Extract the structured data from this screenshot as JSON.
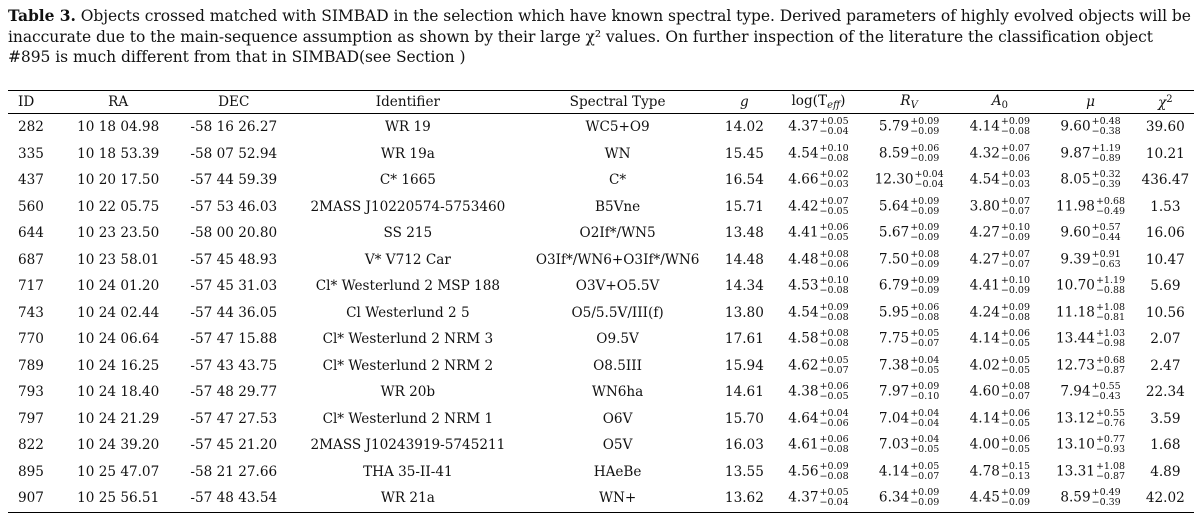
{
  "caption": {
    "label": "Table 3.",
    "text": " Objects crossed matched with SIMBAD in the selection which have known spectral type. Derived parameters of highly evolved objects will be inaccurate due to the main-sequence assumption as shown by their large χ² values. On further inspection of the literature the classification object #895 is much different from that in SIMBAD(see Section )"
  },
  "columns": [
    "ID",
    "RA",
    "DEC",
    "Identifier",
    "Spectral Type",
    "g",
    "log(T",
    "eff",
    ")",
    "R",
    "V",
    "A",
    "0",
    "μ",
    "χ",
    "2"
  ],
  "rows": [
    {
      "id": "282",
      "ra": "10 18 04.98",
      "dec": "-58 16 26.27",
      "ident": "WR 19",
      "spt": "WC5+O9",
      "g": "14.02",
      "teff": "4.37",
      "teff_p": "+0.05",
      "teff_m": "−0.04",
      "rv": "5.79",
      "rv_p": "+0.09",
      "rv_m": "−0.09",
      "a0": "4.14",
      "a0_p": "+0.09",
      "a0_m": "−0.08",
      "mu": "9.60",
      "mu_p": "+0.48",
      "mu_m": "−0.38",
      "chi": "39.60"
    },
    {
      "id": "335",
      "ra": "10 18 53.39",
      "dec": "-58 07 52.94",
      "ident": "WR 19a",
      "spt": "WN",
      "g": "15.45",
      "teff": "4.54",
      "teff_p": "+0.10",
      "teff_m": "−0.08",
      "rv": "8.59",
      "rv_p": "+0.06",
      "rv_m": "−0.09",
      "a0": "4.32",
      "a0_p": "+0.07",
      "a0_m": "−0.06",
      "mu": "9.87",
      "mu_p": "+1.19",
      "mu_m": "−0.89",
      "chi": "10.21"
    },
    {
      "id": "437",
      "ra": "10 20 17.50",
      "dec": "-57 44 59.39",
      "ident": "C* 1665",
      "spt": "C*",
      "g": "16.54",
      "teff": "4.66",
      "teff_p": "+0.02",
      "teff_m": "−0.03",
      "rv": "12.30",
      "rv_p": "+0.04",
      "rv_m": "−0.04",
      "a0": "4.54",
      "a0_p": "+0.03",
      "a0_m": "−0.03",
      "mu": "8.05",
      "mu_p": "+0.32",
      "mu_m": "−0.39",
      "chi": "436.47"
    },
    {
      "id": "560",
      "ra": "10 22 05.75",
      "dec": "-57 53 46.03",
      "ident": "2MASS J10220574-5753460",
      "spt": "B5Vne",
      "g": "15.71",
      "teff": "4.42",
      "teff_p": "+0.07",
      "teff_m": "−0.05",
      "rv": "5.64",
      "rv_p": "+0.09",
      "rv_m": "−0.09",
      "a0": "3.80",
      "a0_p": "+0.07",
      "a0_m": "−0.07",
      "mu": "11.98",
      "mu_p": "+0.68",
      "mu_m": "−0.49",
      "chi": "1.53"
    },
    {
      "id": "644",
      "ra": "10 23 23.50",
      "dec": "-58 00 20.80",
      "ident": "SS 215",
      "spt": "O2If*/WN5",
      "g": "13.48",
      "teff": "4.41",
      "teff_p": "+0.06",
      "teff_m": "−0.05",
      "rv": "5.67",
      "rv_p": "+0.09",
      "rv_m": "−0.09",
      "a0": "4.27",
      "a0_p": "+0.10",
      "a0_m": "−0.09",
      "mu": "9.60",
      "mu_p": "+0.57",
      "mu_m": "−0.44",
      "chi": "16.06"
    },
    {
      "id": "687",
      "ra": "10 23 58.01",
      "dec": "-57 45 48.93",
      "ident": "V* V712 Car",
      "spt": "O3If*/WN6+O3If*/WN6",
      "g": "14.48",
      "teff": "4.48",
      "teff_p": "+0.08",
      "teff_m": "−0.06",
      "rv": "7.50",
      "rv_p": "+0.08",
      "rv_m": "−0.09",
      "a0": "4.27",
      "a0_p": "+0.07",
      "a0_m": "−0.07",
      "mu": "9.39",
      "mu_p": "+0.91",
      "mu_m": "−0.63",
      "chi": "10.47"
    },
    {
      "id": "717",
      "ra": "10 24 01.20",
      "dec": "-57 45 31.03",
      "ident": "Cl* Westerlund 2 MSP 188",
      "spt": "O3V+O5.5V",
      "g": "14.34",
      "teff": "4.53",
      "teff_p": "+0.10",
      "teff_m": "−0.08",
      "rv": "6.79",
      "rv_p": "+0.09",
      "rv_m": "−0.09",
      "a0": "4.41",
      "a0_p": "+0.10",
      "a0_m": "−0.09",
      "mu": "10.70",
      "mu_p": "+1.19",
      "mu_m": "−0.88",
      "chi": "5.69"
    },
    {
      "id": "743",
      "ra": "10 24 02.44",
      "dec": "-57 44 36.05",
      "ident": "Cl Westerlund 2 5",
      "spt": "O5/5.5V/III(f)",
      "g": "13.80",
      "teff": "4.54",
      "teff_p": "+0.09",
      "teff_m": "−0.08",
      "rv": "5.95",
      "rv_p": "+0.06",
      "rv_m": "−0.08",
      "a0": "4.24",
      "a0_p": "+0.09",
      "a0_m": "−0.08",
      "mu": "11.18",
      "mu_p": "+1.08",
      "mu_m": "−0.81",
      "chi": "10.56"
    },
    {
      "id": "770",
      "ra": "10 24 06.64",
      "dec": "-57 47 15.88",
      "ident": "Cl* Westerlund 2 NRM 3",
      "spt": "O9.5V",
      "g": "17.61",
      "teff": "4.58",
      "teff_p": "+0.08",
      "teff_m": "−0.08",
      "rv": "7.75",
      "rv_p": "+0.05",
      "rv_m": "−0.07",
      "a0": "4.14",
      "a0_p": "+0.06",
      "a0_m": "−0.05",
      "mu": "13.44",
      "mu_p": "+1.03",
      "mu_m": "−0.98",
      "chi": "2.07"
    },
    {
      "id": "789",
      "ra": "10 24 16.25",
      "dec": "-57 43 43.75",
      "ident": "Cl* Westerlund 2 NRM 2",
      "spt": "O8.5III",
      "g": "15.94",
      "teff": "4.62",
      "teff_p": "+0.05",
      "teff_m": "−0.07",
      "rv": "7.38",
      "rv_p": "+0.04",
      "rv_m": "−0.05",
      "a0": "4.02",
      "a0_p": "+0.05",
      "a0_m": "−0.05",
      "mu": "12.73",
      "mu_p": "+0.68",
      "mu_m": "−0.87",
      "chi": "2.47"
    },
    {
      "id": "793",
      "ra": "10 24 18.40",
      "dec": "-57 48 29.77",
      "ident": "WR 20b",
      "spt": "WN6ha",
      "g": "14.61",
      "teff": "4.38",
      "teff_p": "+0.06",
      "teff_m": "−0.05",
      "rv": "7.97",
      "rv_p": "+0.09",
      "rv_m": "−0.10",
      "a0": "4.60",
      "a0_p": "+0.08",
      "a0_m": "−0.07",
      "mu": "7.94",
      "mu_p": "+0.55",
      "mu_m": "−0.43",
      "chi": "22.34"
    },
    {
      "id": "797",
      "ra": "10 24 21.29",
      "dec": "-57 47 27.53",
      "ident": "Cl* Westerlund 2 NRM 1",
      "spt": "O6V",
      "g": "15.70",
      "teff": "4.64",
      "teff_p": "+0.04",
      "teff_m": "−0.06",
      "rv": "7.04",
      "rv_p": "+0.04",
      "rv_m": "−0.04",
      "a0": "4.14",
      "a0_p": "+0.06",
      "a0_m": "−0.05",
      "mu": "13.12",
      "mu_p": "+0.55",
      "mu_m": "−0.76",
      "chi": "3.59"
    },
    {
      "id": "822",
      "ra": "10 24 39.20",
      "dec": "-57 45 21.20",
      "ident": "2MASS J10243919-5745211",
      "spt": "O5V",
      "g": "16.03",
      "teff": "4.61",
      "teff_p": "+0.06",
      "teff_m": "−0.08",
      "rv": "7.03",
      "rv_p": "+0.04",
      "rv_m": "−0.05",
      "a0": "4.00",
      "a0_p": "+0.06",
      "a0_m": "−0.05",
      "mu": "13.10",
      "mu_p": "+0.77",
      "mu_m": "−0.93",
      "chi": "1.68"
    },
    {
      "id": "895",
      "ra": "10 25 47.07",
      "dec": "-58 21 27.66",
      "ident": "THA 35-II-41",
      "spt": "HAeBe",
      "g": "13.55",
      "teff": "4.56",
      "teff_p": "+0.09",
      "teff_m": "−0.08",
      "rv": "4.14",
      "rv_p": "+0.05",
      "rv_m": "−0.07",
      "a0": "4.78",
      "a0_p": "+0.15",
      "a0_m": "−0.13",
      "mu": "13.31",
      "mu_p": "+1.08",
      "mu_m": "−0.87",
      "chi": "4.89"
    },
    {
      "id": "907",
      "ra": "10 25 56.51",
      "dec": "-57 48 43.54",
      "ident": "WR 21a",
      "spt": "WN+",
      "g": "13.62",
      "teff": "4.37",
      "teff_p": "+0.05",
      "teff_m": "−0.04",
      "rv": "6.34",
      "rv_p": "+0.09",
      "rv_m": "−0.09",
      "a0": "4.45",
      "a0_p": "+0.09",
      "a0_m": "−0.09",
      "mu": "8.59",
      "mu_p": "+0.49",
      "mu_m": "−0.39",
      "chi": "42.02"
    }
  ]
}
